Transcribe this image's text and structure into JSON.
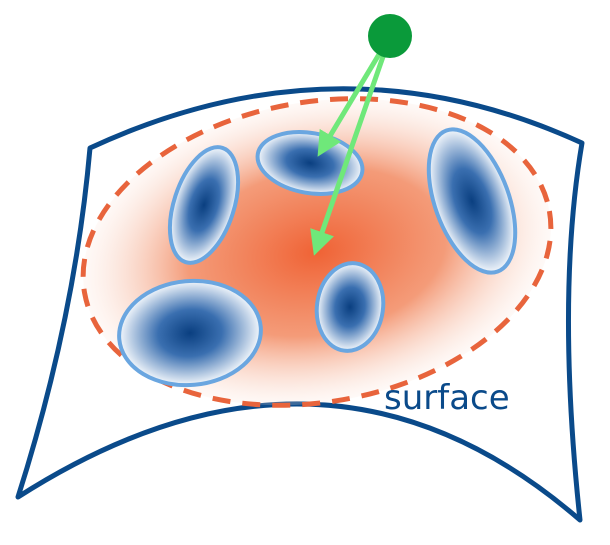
{
  "diagram": {
    "surface_label": "surface",
    "colors": {
      "surface_outline": "#0a4a8a",
      "region_dashed": "#e8643c",
      "region_fill_center": "#f06a3a",
      "cluster_outline": "#6aa6e0",
      "cluster_center": "#0a4a8a",
      "arrow": "#6fe87a",
      "source_point": "#0a9a3a",
      "label_text": "#0a4a8a"
    },
    "clusters": [
      {
        "name": "cluster-top-center"
      },
      {
        "name": "cluster-left-upper"
      },
      {
        "name": "cluster-right"
      },
      {
        "name": "cluster-bottom-left"
      },
      {
        "name": "cluster-center-lower"
      }
    ],
    "arrows": [
      {
        "name": "arrow-to-top-cluster"
      },
      {
        "name": "arrow-to-center"
      }
    ]
  }
}
